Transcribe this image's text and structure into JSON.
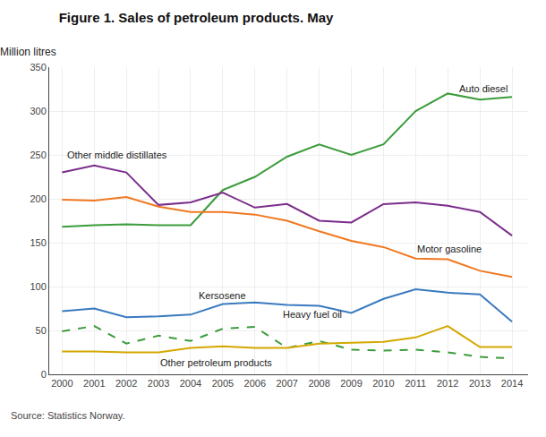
{
  "chart_data": {
    "type": "line",
    "title": "Figure 1. Sales of petroleum products. May",
    "ylabel": "Million litres",
    "source": "Source: Statistics Norway.",
    "x": [
      2000,
      2001,
      2002,
      2003,
      2004,
      2005,
      2006,
      2007,
      2008,
      2009,
      2010,
      2011,
      2012,
      2013,
      2014
    ],
    "series": [
      {
        "name": "Auto diesel",
        "color": "#3c9c3c",
        "line_style": "solid",
        "values": [
          168,
          170,
          171,
          170,
          170,
          210,
          225,
          248,
          262,
          250,
          262,
          300,
          320,
          313,
          316
        ]
      },
      {
        "name": "Other middle distillates",
        "color": "#7b2d8b",
        "line_style": "solid",
        "values": [
          230,
          238,
          230,
          193,
          196,
          207,
          190,
          194,
          175,
          173,
          194,
          196,
          192,
          185,
          158
        ]
      },
      {
        "name": "Motor gasoline",
        "color": "#f07820",
        "line_style": "solid",
        "values": [
          199,
          198,
          202,
          191,
          185,
          185,
          182,
          175,
          163,
          152,
          145,
          132,
          131,
          118,
          111
        ]
      },
      {
        "name": "Kersosene",
        "color": "#3a7abf",
        "line_style": "solid",
        "values": [
          72,
          75,
          65,
          66,
          68,
          80,
          82,
          79,
          78,
          70,
          86,
          97,
          93,
          91,
          60
        ]
      },
      {
        "name": "Heavy fuel oil",
        "color": "#3c9c3c",
        "line_style": "dashed",
        "values": [
          49,
          55,
          35,
          44,
          38,
          52,
          54,
          30,
          38,
          28,
          27,
          28,
          25,
          20,
          18
        ]
      },
      {
        "name": "Other petroleum products",
        "color": "#d4a800",
        "line_style": "solid",
        "values": [
          26,
          26,
          25,
          25,
          30,
          32,
          30,
          30,
          35,
          36,
          37,
          42,
          55,
          31,
          31
        ]
      }
    ],
    "annotations": [
      {
        "text": "Auto diesel",
        "x": 2012.3,
        "y": 326
      },
      {
        "text": "Other middle distillates",
        "x": 2000.1,
        "y": 250
      },
      {
        "text": "Motor gasoline",
        "x": 2011.0,
        "y": 143
      },
      {
        "text": "Kersosene",
        "x": 2004.2,
        "y": 90
      },
      {
        "text": "Heavy fuel oil",
        "x": 2006.8,
        "y": 68
      },
      {
        "text": "Other petroleum products",
        "x": 2003.0,
        "y": 13
      }
    ],
    "xlim": [
      1999.6,
      2014.5
    ],
    "xticks": [
      2000,
      2001,
      2002,
      2003,
      2004,
      2005,
      2006,
      2007,
      2008,
      2009,
      2010,
      2011,
      2012,
      2013,
      2014
    ],
    "ylim": [
      0,
      350
    ],
    "yticks": [
      0,
      50,
      100,
      150,
      200,
      250,
      300,
      350
    ],
    "grid": true
  }
}
